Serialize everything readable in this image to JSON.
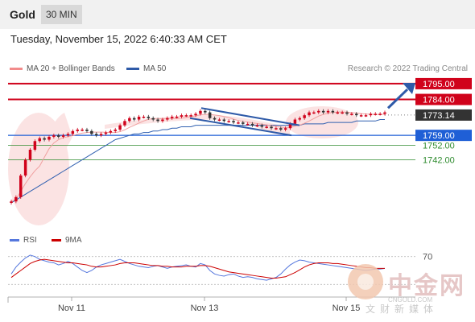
{
  "header": {
    "title": "Gold",
    "timeframe": "30 MIN"
  },
  "date_text": "Tuesday, November 15, 2022 6:40:33 AM CET",
  "legend": {
    "ma20": "MA 20 + Bollinger Bands",
    "ma50": "MA 50",
    "credit": "Research © 2022 Trading Central",
    "rsi": "RSI",
    "ma9": "9MA"
  },
  "colors": {
    "up": "#d0021b",
    "down": "#333333",
    "ma50": "#3060b0",
    "resistance": "#d0021b",
    "support_blue": "#1f5fd6",
    "support_green": "#2e8b2e",
    "rsi": "#5577dd",
    "ma9": "#cc0000",
    "arrow": "#2e5aa8",
    "band": "#fbe3e3"
  },
  "chart_data": {
    "type": "line",
    "title": "Gold",
    "ylim": [
      1712,
      1800
    ],
    "x_ticks": [
      "Nov 11",
      "Nov 13",
      "Nov 15"
    ],
    "series": [
      {
        "name": "Gold",
        "values": [
          1713,
          1716,
          1731,
          1742,
          1749,
          1755,
          1757,
          1756,
          1758,
          1759,
          1758,
          1759,
          1760,
          1762,
          1763,
          1763,
          1762,
          1760,
          1759,
          1760,
          1761,
          1762,
          1763,
          1766,
          1769,
          1771,
          1770,
          1772,
          1772,
          1771,
          1770,
          1769,
          1770,
          1771,
          1772,
          1772,
          1773,
          1773,
          1773,
          1774,
          1776,
          1775,
          1771,
          1770,
          1770,
          1769,
          1769,
          1768,
          1768,
          1767,
          1767,
          1766,
          1766,
          1765,
          1765,
          1764,
          1764,
          1763,
          1764,
          1767,
          1770,
          1771,
          1773,
          1775,
          1775,
          1776,
          1775,
          1776,
          1775,
          1775,
          1775,
          1774,
          1774,
          1773,
          1773,
          1773,
          1774,
          1774,
          1774,
          1775
        ]
      },
      {
        "name": "MA 50",
        "values": [
          1712,
          1714,
          1716,
          1718,
          1720,
          1722,
          1724,
          1726,
          1728,
          1730,
          1732,
          1734,
          1736,
          1738,
          1740,
          1742,
          1744,
          1746,
          1748,
          1750,
          1752,
          1754,
          1756,
          1757,
          1758,
          1759,
          1760,
          1760,
          1761,
          1761,
          1762,
          1762,
          1763,
          1763,
          1764,
          1764,
          1765,
          1765,
          1765,
          1766,
          1766,
          1766,
          1766,
          1766,
          1766,
          1766,
          1766,
          1766,
          1766,
          1766,
          1766,
          1766,
          1766,
          1766,
          1766,
          1766,
          1766,
          1766,
          1766,
          1766,
          1766,
          1766,
          1767,
          1767,
          1767,
          1767,
          1767,
          1768,
          1768,
          1768,
          1768,
          1768,
          1768,
          1769,
          1769,
          1769,
          1769,
          1769,
          1770,
          1770
        ]
      }
    ],
    "levels": [
      {
        "value": 1795.0,
        "label": "1795.00",
        "kind": "resistance"
      },
      {
        "value": 1784.0,
        "label": "1784.00",
        "kind": "resistance"
      },
      {
        "value": 1773.14,
        "label": "1773.14",
        "kind": "last"
      },
      {
        "value": 1759.0,
        "label": "1759.00",
        "kind": "support_blue"
      },
      {
        "value": 1752.0,
        "label": "1752.00",
        "kind": "support_green"
      },
      {
        "value": 1742.0,
        "label": "1742.00",
        "kind": "support_green"
      }
    ],
    "rsi": {
      "ylim": [
        20,
        80
      ],
      "level_label": "70",
      "rsi_values": [
        45,
        55,
        62,
        68,
        72,
        70,
        66,
        64,
        62,
        61,
        58,
        60,
        63,
        60,
        55,
        50,
        47,
        50,
        55,
        58,
        60,
        62,
        64,
        66,
        63,
        60,
        58,
        56,
        55,
        54,
        56,
        57,
        55,
        53,
        55,
        56,
        57,
        58,
        56,
        55,
        60,
        58,
        50,
        45,
        43,
        42,
        44,
        45,
        42,
        40,
        41,
        40,
        38,
        37,
        36,
        38,
        40,
        45,
        52,
        58,
        62,
        65,
        64,
        62,
        61,
        60,
        59,
        58,
        57,
        56,
        55,
        54,
        53,
        52,
        51,
        50,
        51,
        52,
        52,
        53
      ],
      "ma9_values": [
        40,
        45,
        50,
        55,
        60,
        63,
        65,
        66,
        65,
        64,
        63,
        62,
        61,
        61,
        60,
        59,
        58,
        56,
        55,
        55,
        56,
        57,
        58,
        60,
        61,
        61,
        61,
        60,
        59,
        58,
        57,
        57,
        56,
        56,
        55,
        55,
        55,
        56,
        56,
        56,
        57,
        57,
        56,
        54,
        52,
        50,
        48,
        47,
        46,
        45,
        44,
        43,
        42,
        41,
        40,
        39,
        39,
        40,
        41,
        44,
        47,
        51,
        55,
        58,
        60,
        61,
        61,
        61,
        60,
        60,
        59,
        58,
        57,
        56,
        55,
        54,
        54,
        53,
        53,
        53
      ]
    }
  },
  "watermark": {
    "cn": "中金网",
    "url": "CNGOLD.COM",
    "sub": "文财新媒体"
  }
}
